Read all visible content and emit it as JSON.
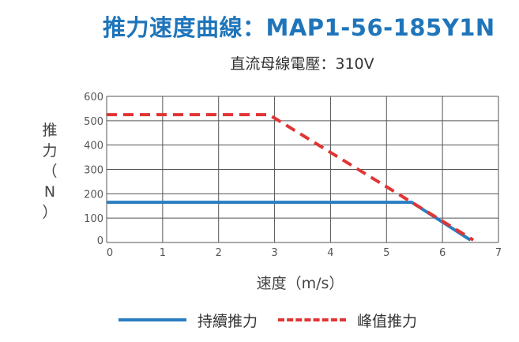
{
  "title": "推力速度曲線：MAP1-56-185Y1N",
  "subtitle": "直流母線電壓：310V",
  "colors": {
    "title": "#1f75ba",
    "continuous": "#2a7dc1",
    "peak": "#e03535",
    "grid": "#555555"
  },
  "chart_data": {
    "type": "line",
    "title": "推力速度曲線：MAP1-56-185Y1N",
    "subtitle": "直流母線電壓：310V",
    "xlabel": "速度（m/s）",
    "ylabel": "推力（N）",
    "xlim": [
      0,
      7
    ],
    "ylim": [
      0,
      600
    ],
    "x_ticks": [
      0,
      1,
      2,
      3,
      4,
      5,
      6,
      7
    ],
    "y_ticks": [
      0,
      100,
      200,
      300,
      400,
      500,
      600
    ],
    "x_tick_labels": [
      "0",
      "1",
      "2",
      "3",
      "4",
      "5",
      "6",
      "7"
    ],
    "y_tick_labels": [
      "0",
      "100",
      "200",
      "300",
      "400",
      "500",
      "600"
    ],
    "grid": true,
    "legend_position": "bottom",
    "series": [
      {
        "name": "持續推力",
        "style": "solid",
        "color": "#2a7dc1",
        "points": [
          [
            0,
            165
          ],
          [
            5.45,
            165
          ],
          [
            6.5,
            10
          ]
        ]
      },
      {
        "name": "峰值推力",
        "style": "dashed",
        "color": "#e03535",
        "points": [
          [
            0,
            525
          ],
          [
            2.9,
            525
          ],
          [
            6.55,
            10
          ]
        ]
      }
    ]
  }
}
